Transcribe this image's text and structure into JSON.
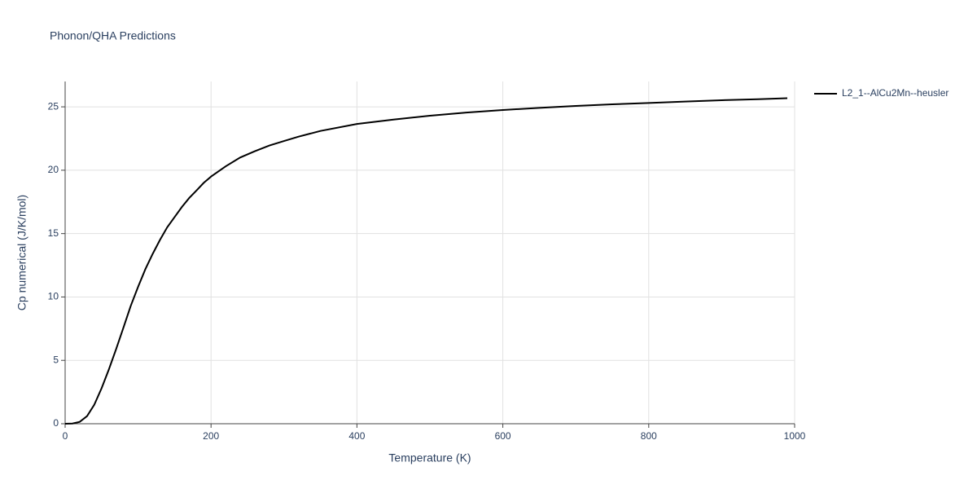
{
  "chart_data": {
    "type": "line",
    "title": "Phonon/QHA Predictions",
    "x_label": "Temperature (K)",
    "y_label": "Cp numerical (J/K/mol)",
    "x": [
      0,
      10,
      20,
      30,
      40,
      50,
      60,
      70,
      80,
      90,
      100,
      110,
      120,
      130,
      140,
      150,
      160,
      170,
      180,
      190,
      200,
      220,
      240,
      260,
      280,
      300,
      320,
      350,
      400,
      450,
      500,
      550,
      600,
      650,
      700,
      750,
      800,
      850,
      900,
      950,
      990
    ],
    "series": [
      {
        "name": "L2_1--AlCu2Mn--heusler",
        "color": "#000000",
        "values": [
          0,
          0.02,
          0.15,
          0.6,
          1.5,
          2.8,
          4.3,
          5.9,
          7.6,
          9.3,
          10.8,
          12.2,
          13.4,
          14.5,
          15.5,
          16.3,
          17.1,
          17.8,
          18.4,
          19.0,
          19.5,
          20.3,
          21.0,
          21.5,
          21.95,
          22.3,
          22.65,
          23.1,
          23.65,
          24.0,
          24.3,
          24.55,
          24.75,
          24.92,
          25.07,
          25.2,
          25.3,
          25.42,
          25.52,
          25.6,
          25.68
        ]
      }
    ],
    "xlim": [
      0,
      1000
    ],
    "xticks": [
      0,
      200,
      400,
      600,
      800,
      1000
    ],
    "ylim": [
      0,
      27
    ],
    "yticks": [
      0,
      5,
      10,
      15,
      20,
      25
    ],
    "grid": true,
    "legend": "right"
  }
}
